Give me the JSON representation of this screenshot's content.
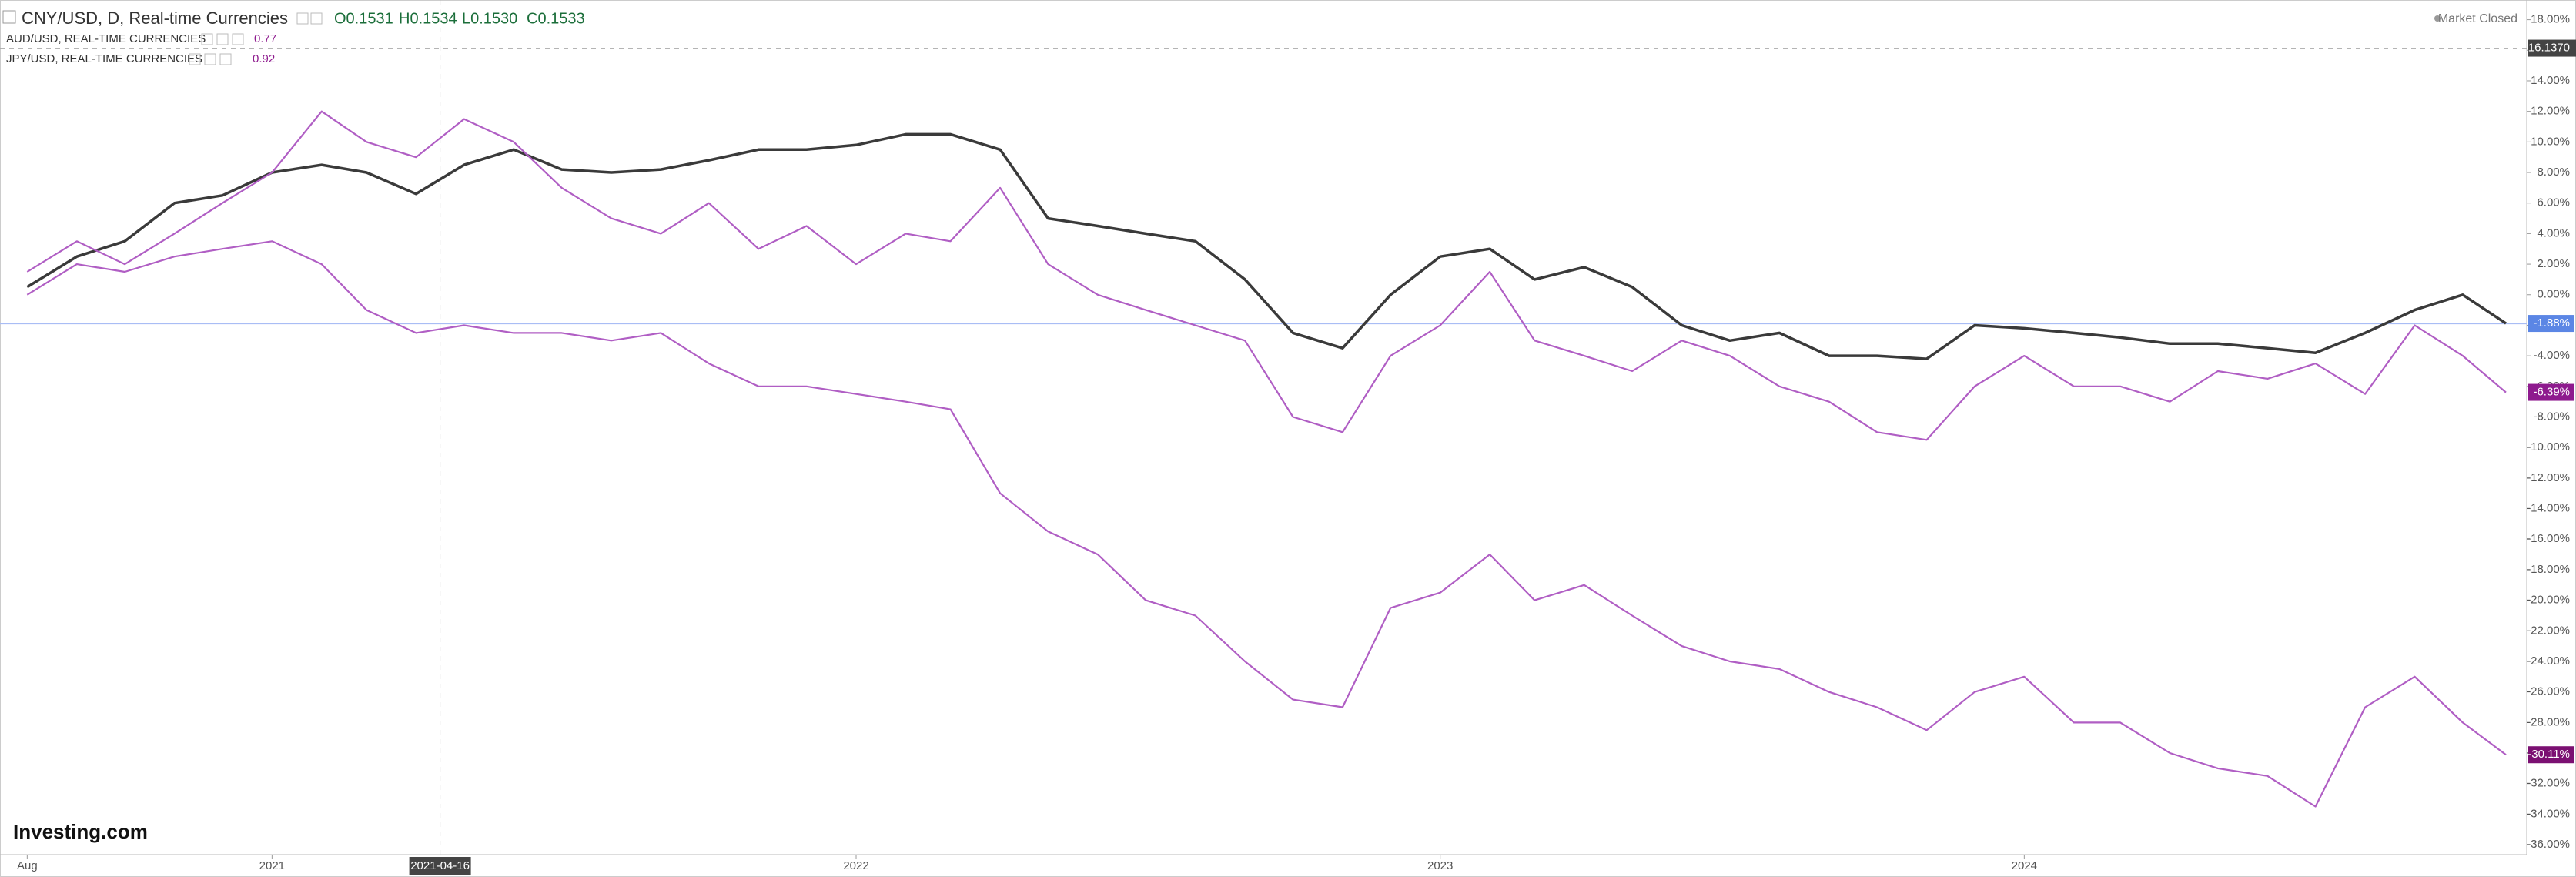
{
  "header": {
    "ohlc": [
      "O0.1531",
      "H0.1534",
      "L0.1530",
      "C0.1533"
    ],
    "status": "Market Closed",
    "logo": "Investing.com"
  },
  "chart_data": {
    "type": "line",
    "x": [
      "2020-08-01",
      "2020-09-01",
      "2020-10-01",
      "2020-11-01",
      "2020-12-01",
      "2021-01-01",
      "2021-02-01",
      "2021-03-01",
      "2021-04-01",
      "2021-05-01",
      "2021-06-01",
      "2021-07-01",
      "2021-08-01",
      "2021-09-01",
      "2021-10-01",
      "2021-11-01",
      "2021-12-01",
      "2022-01-01",
      "2022-02-01",
      "2022-03-01",
      "2022-04-01",
      "2022-05-01",
      "2022-06-01",
      "2022-07-01",
      "2022-08-01",
      "2022-09-01",
      "2022-10-01",
      "2022-11-01",
      "2022-12-01",
      "2023-01-01",
      "2023-02-01",
      "2023-03-01",
      "2023-04-01",
      "2023-05-01",
      "2023-06-01",
      "2023-07-01",
      "2023-08-01",
      "2023-09-01",
      "2023-10-01",
      "2023-11-01",
      "2023-12-01",
      "2024-01-01",
      "2024-02-01",
      "2024-03-01",
      "2024-04-01",
      "2024-05-01",
      "2024-06-01",
      "2024-07-01",
      "2024-08-01",
      "2024-09-01",
      "2024-10-01",
      "2024-10-28"
    ],
    "series": [
      {
        "name": "CNY/USD, D, Real-time Currencies",
        "color": "#3a3a3a",
        "label_color": "#5b86e5",
        "price_line": true,
        "values": [
          0.5,
          2.5,
          3.5,
          6,
          6.5,
          8,
          8.5,
          8,
          6.6,
          8.5,
          9.5,
          8.2,
          8,
          8.2,
          8.8,
          9.5,
          9.5,
          9.8,
          10.5,
          10.5,
          9.5,
          5,
          4.5,
          4,
          3.5,
          1,
          -2.5,
          -3.5,
          0,
          2.5,
          3,
          1,
          1.8,
          0.5,
          -2,
          -3,
          -2.5,
          -4,
          -4,
          -4.2,
          -2,
          -2.2,
          -2.5,
          -2.8,
          -3.2,
          -3.2,
          -3.5,
          -3.8,
          -2.5,
          -1,
          0,
          -1.88
        ],
        "value_labels": [
          null,
          null,
          null,
          null,
          null,
          null,
          null,
          null,
          null,
          null,
          null,
          null,
          null,
          null,
          null,
          null,
          null,
          null,
          null,
          null,
          null,
          null,
          null,
          null,
          null,
          null,
          null,
          null,
          null,
          null,
          null,
          null,
          null,
          null,
          null,
          null,
          null,
          null,
          null,
          null,
          null,
          null,
          null,
          null,
          null,
          null,
          null,
          null,
          null,
          null,
          null,
          "-1.88%"
        ]
      },
      {
        "name": "AUD/USD, REAL-TIME CURRENCIES",
        "legend_value": 0.77,
        "color": "#b05ec4",
        "label_color": "#8e1a8e",
        "values": [
          1.5,
          3.5,
          2,
          4,
          6,
          8,
          12,
          10,
          9,
          11.5,
          10,
          7,
          5,
          4,
          6,
          3,
          4.5,
          2,
          4,
          3.5,
          7,
          2,
          0,
          -1,
          -2,
          -3,
          -8,
          -9,
          -4,
          -2,
          1.5,
          -3,
          -4,
          -5,
          -3,
          -4,
          -6,
          -7,
          -9,
          -9.5,
          -6,
          -4,
          -6,
          -6,
          -7,
          -5,
          -5.5,
          -4.5,
          -6.5,
          -2,
          -4,
          -6.39
        ],
        "value_labels": [
          null,
          null,
          null,
          null,
          null,
          null,
          null,
          null,
          null,
          null,
          null,
          null,
          null,
          null,
          null,
          null,
          null,
          null,
          null,
          null,
          null,
          null,
          null,
          null,
          null,
          null,
          null,
          null,
          null,
          null,
          null,
          null,
          null,
          null,
          null,
          null,
          null,
          null,
          null,
          null,
          null,
          null,
          null,
          null,
          null,
          null,
          null,
          null,
          null,
          null,
          null,
          "-6.39%"
        ]
      },
      {
        "name": "JPY/USD, REAL-TIME CURRENCIES",
        "legend_value": 0.92,
        "color": "#b05ec4",
        "label_color": "#7b1072",
        "values": [
          0,
          2,
          1.5,
          2.5,
          3,
          3.5,
          2,
          -1,
          -2.5,
          -2,
          -2.5,
          -2.5,
          -3,
          -2.5,
          -4.5,
          -6,
          -6,
          -6.5,
          -7,
          -7.5,
          -13,
          -15.5,
          -17,
          -20,
          -21,
          -24,
          -26.5,
          -27,
          -20.5,
          -19.5,
          -17,
          -20,
          -19,
          -21,
          -23,
          -24,
          -24.5,
          -26,
          -27,
          -28.5,
          -26,
          -25,
          -28,
          -28,
          -30,
          -31,
          -31.5,
          -33.5,
          -27,
          -25,
          -28,
          -30.11
        ],
        "value_labels": [
          null,
          null,
          null,
          null,
          null,
          null,
          null,
          null,
          null,
          null,
          null,
          null,
          null,
          null,
          null,
          null,
          null,
          null,
          null,
          null,
          null,
          null,
          null,
          null,
          null,
          null,
          null,
          null,
          null,
          null,
          null,
          null,
          null,
          null,
          null,
          null,
          null,
          null,
          null,
          null,
          null,
          null,
          null,
          null,
          null,
          null,
          null,
          null,
          null,
          null,
          null,
          "-30.11%"
        ]
      }
    ],
    "xlim": [
      "2020-07-15",
      "2024-11-10"
    ],
    "xticks": [
      {
        "value": "2020-08-01",
        "label": "Aug"
      },
      {
        "value": "2021-01-01",
        "label": "2021"
      },
      {
        "value": "2022-01-01",
        "label": "2022"
      },
      {
        "value": "2023-01-01",
        "label": "2023"
      },
      {
        "value": "2024-01-01",
        "label": "2024"
      }
    ],
    "ylim": [
      -36.65,
      19.29
    ],
    "yticks": [
      {
        "value": 18,
        "label": "18.00%"
      },
      {
        "value": 16,
        "label": "16.00%"
      },
      {
        "value": 14,
        "label": "14.00%"
      },
      {
        "value": 12,
        "label": "12.00%"
      },
      {
        "value": 10,
        "label": "10.00%"
      },
      {
        "value": 8,
        "label": "8.00%"
      },
      {
        "value": 6,
        "label": "6.00%"
      },
      {
        "value": 4,
        "label": "4.00%"
      },
      {
        "value": 2,
        "label": "2.00%"
      },
      {
        "value": 0,
        "label": "0.00%"
      },
      {
        "value": -2,
        "label": "-2.00%"
      },
      {
        "value": -4,
        "label": "-4.00%"
      },
      {
        "value": -6,
        "label": "-6.00%"
      },
      {
        "value": -8,
        "label": "-8.00%"
      },
      {
        "value": -10,
        "label": "-10.00%"
      },
      {
        "value": -12,
        "label": "-12.00%"
      },
      {
        "value": -14,
        "label": "-14.00%"
      },
      {
        "value": -16,
        "label": "-16.00%"
      },
      {
        "value": -18,
        "label": "-18.00%"
      },
      {
        "value": -20,
        "label": "-20.00%"
      },
      {
        "value": -22,
        "label": "-22.00%"
      },
      {
        "value": -24,
        "label": "-24.00%"
      },
      {
        "value": -26,
        "label": "-26.00%"
      },
      {
        "value": -28,
        "label": "-28.00%"
      },
      {
        "value": -30,
        "label": "-30.00%"
      },
      {
        "value": -32,
        "label": "-32.00%"
      },
      {
        "value": -34,
        "label": "-34.00%"
      },
      {
        "value": -36,
        "label": "-36.00%"
      }
    ],
    "crosshair": {
      "x": "2021-04-16",
      "y": {
        "value": 16.137,
        "label": "16.1370"
      }
    },
    "grid": false
  }
}
